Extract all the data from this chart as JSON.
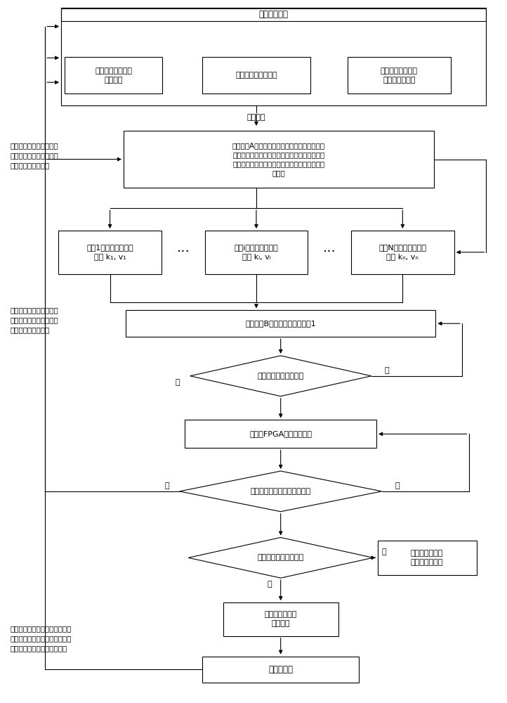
{
  "bg_color": "#ffffff",
  "line_color": "#000000",
  "box_fill": "#ffffff",
  "lw": 0.8,
  "texts": {
    "top_label": "上位机数据：",
    "box1": "各个路段的交通流\n初始状态",
    "box2": "各个路段的道路参数",
    "box3": "各个路段的匝道出\n入口处的车流量",
    "serial": "串口传输",
    "storageA": "存储区域A：存储来各个路段的交通流初始状态\n（路段的平均交通流密度和车辆的平均速度）、\n各个路段的道路参数、各个路段的匝道出入口的\n车流量",
    "pred1": "路段1交通状态的预测\n得到 k₁, v₁",
    "predi": "路段i交通状态的预测\n得到 kᵢ, vᵢ",
    "predN": "路段N交通状态的预测\n得到 kₙ, vₙ",
    "storageB": "存储区域B，发送数据计数器加1",
    "diamond_period": "是否达到参数变更周期",
    "fpga": "阵列式FPGA进入等待状态",
    "diamond_signal": "是否接收到上位机的控制信号",
    "diamond_cong": "拥堵现象是否得到缓解",
    "keep": "控制器保持当前\n控制方案不变更",
    "change": "控制器变更当前\n控制方案",
    "ramp": "匝道调节杆",
    "side1": "各个路段的交通状态预测\n值：路段的平均交通流密\n度和车辆的平均速度",
    "side2": "各个路段的交通状态预测\n值：路段的平均交通流密\n度和车辆的平均速度",
    "side3": "更改控制率，输出驱动信号，控\n制匝道调节杆开闭，以及车辆的\n通行时间，调控匝道入口流量",
    "yes": "是",
    "no": "否"
  }
}
